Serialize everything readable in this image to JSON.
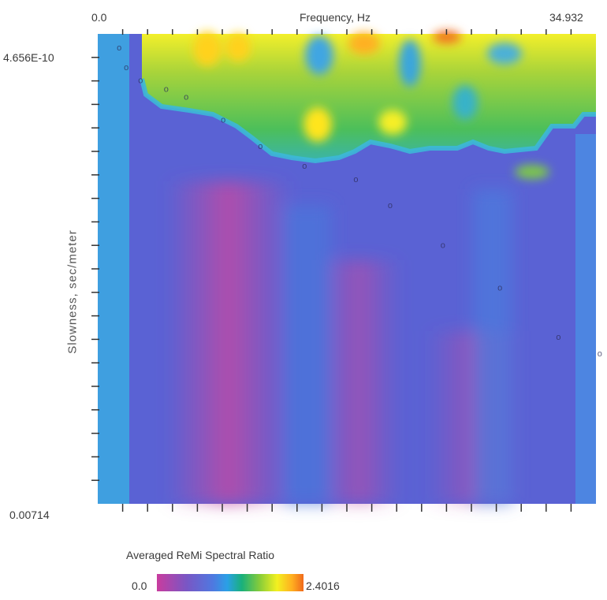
{
  "chart_data": {
    "type": "heatmap",
    "title": "",
    "xlabel": "Frequency, Hz",
    "ylabel": "Slowness, sec/meter",
    "x_tick_labels": [
      "0.0",
      "34.932"
    ],
    "y_tick_labels": [
      "4.656E-10",
      "0.00714"
    ],
    "xlim": [
      0.0,
      34.932
    ],
    "ylim": [
      4.656e-10,
      0.00714
    ],
    "y_axis_direction": "top-to-bottom",
    "grid": false,
    "colorbar": {
      "title": "Averaged ReMi Spectral Ratio",
      "min_label": "0.0",
      "max_label": "2.4016",
      "range": [
        0.0,
        2.4016
      ],
      "colors": [
        "#c93c9e",
        "#7a56c4",
        "#4f78e0",
        "#2aa0e6",
        "#19b07a",
        "#86cc3a",
        "#f3f020",
        "#ffb020",
        "#f06a1c"
      ]
    },
    "picked_points": [
      {
        "frequency": 1.5,
        "slowness": 0.00025
      },
      {
        "frequency": 2.0,
        "slowness": 0.00055
      },
      {
        "frequency": 3.0,
        "slowness": 0.00075
      },
      {
        "frequency": 4.8,
        "slowness": 0.00088
      },
      {
        "frequency": 6.2,
        "slowness": 0.001
      },
      {
        "frequency": 8.8,
        "slowness": 0.00135
      },
      {
        "frequency": 11.4,
        "slowness": 0.00175
      },
      {
        "frequency": 14.5,
        "slowness": 0.00205
      },
      {
        "frequency": 18.1,
        "slowness": 0.00225
      },
      {
        "frequency": 20.5,
        "slowness": 0.00265
      },
      {
        "frequency": 24.2,
        "slowness": 0.00325
      },
      {
        "frequency": 28.2,
        "slowness": 0.0039
      },
      {
        "frequency": 32.3,
        "slowness": 0.00465
      },
      {
        "frequency": 35.2,
        "slowness": 0.0049
      }
    ]
  }
}
